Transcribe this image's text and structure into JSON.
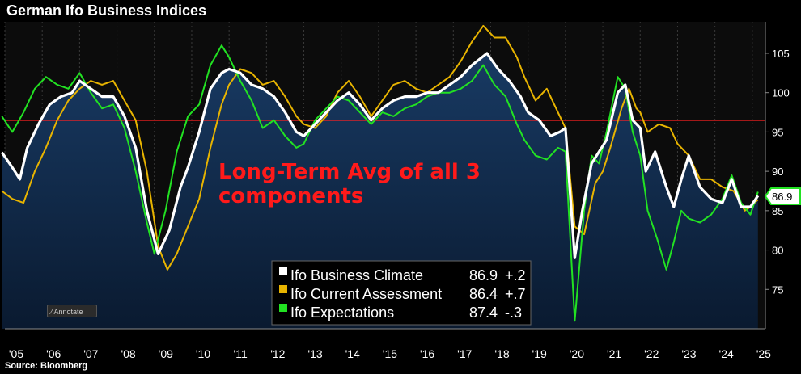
{
  "title": "German Ifo Business Indices",
  "source": "Source: Bloomberg",
  "annotate_label": "Annotate",
  "chart_data": {
    "type": "line",
    "title": "German Ifo Business Indices",
    "ylim": [
      70,
      109
    ],
    "yticks": [
      75,
      80,
      85,
      90,
      95,
      100,
      105
    ],
    "xlim": [
      2005.0,
      2025.35
    ],
    "xticks": [
      {
        "label": "'05",
        "x": 2005.0
      },
      {
        "label": "'06",
        "x": 2006.0
      },
      {
        "label": "'07",
        "x": 2007.0
      },
      {
        "label": "'08",
        "x": 2008.0
      },
      {
        "label": "'09",
        "x": 2009.0
      },
      {
        "label": "'10",
        "x": 2010.0
      },
      {
        "label": "'11",
        "x": 2011.0
      },
      {
        "label": "'12",
        "x": 2012.0
      },
      {
        "label": "'13",
        "x": 2013.0
      },
      {
        "label": "'14",
        "x": 2014.0
      },
      {
        "label": "'15",
        "x": 2015.0
      },
      {
        "label": "'16",
        "x": 2016.0
      },
      {
        "label": "'17",
        "x": 2017.0
      },
      {
        "label": "'18",
        "x": 2018.0
      },
      {
        "label": "'19",
        "x": 2019.0
      },
      {
        "label": "'20",
        "x": 2020.0
      },
      {
        "label": "'21",
        "x": 2021.0
      },
      {
        "label": "'22",
        "x": 2022.0
      },
      {
        "label": "'23",
        "x": 2023.0
      },
      {
        "label": "'24",
        "x": 2024.0
      },
      {
        "label": "'25",
        "x": 2025.0
      }
    ],
    "reference_line": {
      "value": 96.5,
      "color": "#ff2020"
    },
    "annotation": {
      "line1": "Long-Term Avg of all 3",
      "line2": "components"
    },
    "last_value_label": "86.9",
    "series": [
      {
        "name": "Ifo Business Climate",
        "value": "86.9",
        "change": "+.2",
        "color": "#ffffff",
        "points": [
          [
            2004.92,
            92.4
          ],
          [
            2005.2,
            90.5
          ],
          [
            2005.4,
            89.0
          ],
          [
            2005.6,
            93.0
          ],
          [
            2005.9,
            96.0
          ],
          [
            2006.2,
            98.5
          ],
          [
            2006.5,
            99.5
          ],
          [
            2006.8,
            100.0
          ],
          [
            2007.0,
            101.5
          ],
          [
            2007.3,
            100.5
          ],
          [
            2007.6,
            99.5
          ],
          [
            2007.9,
            99.5
          ],
          [
            2008.2,
            97.0
          ],
          [
            2008.5,
            93.0
          ],
          [
            2008.8,
            85.0
          ],
          [
            2009.1,
            79.5
          ],
          [
            2009.4,
            82.5
          ],
          [
            2009.7,
            88.0
          ],
          [
            2009.9,
            90.5
          ],
          [
            2010.2,
            95.0
          ],
          [
            2010.5,
            100.5
          ],
          [
            2010.8,
            102.5
          ],
          [
            2011.0,
            103.0
          ],
          [
            2011.3,
            102.5
          ],
          [
            2011.6,
            101.0
          ],
          [
            2011.9,
            100.5
          ],
          [
            2012.2,
            99.5
          ],
          [
            2012.5,
            97.5
          ],
          [
            2012.8,
            95.0
          ],
          [
            2013.0,
            94.5
          ],
          [
            2013.3,
            96.0
          ],
          [
            2013.6,
            97.5
          ],
          [
            2013.9,
            99.0
          ],
          [
            2014.2,
            100.0
          ],
          [
            2014.5,
            98.5
          ],
          [
            2014.8,
            96.5
          ],
          [
            2015.1,
            98.0
          ],
          [
            2015.4,
            99.0
          ],
          [
            2015.7,
            99.5
          ],
          [
            2016.0,
            99.5
          ],
          [
            2016.3,
            100.0
          ],
          [
            2016.6,
            100.0
          ],
          [
            2016.9,
            101.0
          ],
          [
            2017.2,
            102.0
          ],
          [
            2017.5,
            103.5
          ],
          [
            2017.9,
            105.0
          ],
          [
            2018.2,
            103.0
          ],
          [
            2018.5,
            101.5
          ],
          [
            2018.8,
            99.5
          ],
          [
            2019.0,
            97.5
          ],
          [
            2019.3,
            96.5
          ],
          [
            2019.6,
            94.5
          ],
          [
            2019.85,
            95.0
          ],
          [
            2020.0,
            95.5
          ],
          [
            2020.25,
            79.0
          ],
          [
            2020.45,
            85.0
          ],
          [
            2020.7,
            91.0
          ],
          [
            2020.9,
            92.5
          ],
          [
            2021.1,
            94.0
          ],
          [
            2021.4,
            100.0
          ],
          [
            2021.6,
            101.0
          ],
          [
            2021.8,
            96.5
          ],
          [
            2022.0,
            95.5
          ],
          [
            2022.15,
            90.0
          ],
          [
            2022.4,
            92.5
          ],
          [
            2022.7,
            88.0
          ],
          [
            2022.9,
            85.5
          ],
          [
            2023.1,
            89.0
          ],
          [
            2023.3,
            92.0
          ],
          [
            2023.6,
            88.0
          ],
          [
            2023.9,
            86.5
          ],
          [
            2024.2,
            86.0
          ],
          [
            2024.45,
            89.0
          ],
          [
            2024.7,
            85.5
          ],
          [
            2024.95,
            85.5
          ],
          [
            2025.15,
            86.9
          ]
        ]
      },
      {
        "name": "Ifo Current Assessment",
        "value": "86.4",
        "change": "+.7",
        "color": "#e8b400",
        "points": [
          [
            2004.92,
            87.5
          ],
          [
            2005.2,
            86.5
          ],
          [
            2005.5,
            86.0
          ],
          [
            2005.8,
            90.0
          ],
          [
            2006.1,
            93.0
          ],
          [
            2006.4,
            96.5
          ],
          [
            2006.7,
            99.0
          ],
          [
            2007.0,
            100.5
          ],
          [
            2007.3,
            101.5
          ],
          [
            2007.6,
            101.0
          ],
          [
            2007.9,
            101.5
          ],
          [
            2008.2,
            99.0
          ],
          [
            2008.5,
            96.5
          ],
          [
            2008.8,
            90.0
          ],
          [
            2009.1,
            80.5
          ],
          [
            2009.35,
            77.5
          ],
          [
            2009.6,
            79.5
          ],
          [
            2009.9,
            83.0
          ],
          [
            2010.2,
            86.5
          ],
          [
            2010.5,
            93.0
          ],
          [
            2010.8,
            98.5
          ],
          [
            2011.0,
            101.0
          ],
          [
            2011.3,
            103.0
          ],
          [
            2011.6,
            102.5
          ],
          [
            2011.9,
            101.0
          ],
          [
            2012.2,
            101.5
          ],
          [
            2012.5,
            99.5
          ],
          [
            2012.8,
            97.0
          ],
          [
            2013.0,
            96.0
          ],
          [
            2013.3,
            95.5
          ],
          [
            2013.6,
            97.0
          ],
          [
            2013.9,
            100.0
          ],
          [
            2014.2,
            101.5
          ],
          [
            2014.5,
            99.5
          ],
          [
            2014.8,
            97.0
          ],
          [
            2015.1,
            99.0
          ],
          [
            2015.4,
            101.0
          ],
          [
            2015.7,
            101.5
          ],
          [
            2016.0,
            100.5
          ],
          [
            2016.3,
            100.0
          ],
          [
            2016.6,
            101.0
          ],
          [
            2016.9,
            102.0
          ],
          [
            2017.2,
            104.0
          ],
          [
            2017.5,
            106.5
          ],
          [
            2017.8,
            108.5
          ],
          [
            2018.1,
            107.0
          ],
          [
            2018.4,
            107.0
          ],
          [
            2018.7,
            104.5
          ],
          [
            2018.9,
            102.0
          ],
          [
            2019.2,
            99.0
          ],
          [
            2019.5,
            100.5
          ],
          [
            2019.8,
            97.5
          ],
          [
            2020.0,
            95.5
          ],
          [
            2020.25,
            83.0
          ],
          [
            2020.5,
            82.0
          ],
          [
            2020.8,
            88.5
          ],
          [
            2021.0,
            90.0
          ],
          [
            2021.2,
            93.0
          ],
          [
            2021.5,
            98.0
          ],
          [
            2021.7,
            100.5
          ],
          [
            2021.9,
            98.0
          ],
          [
            2022.0,
            97.5
          ],
          [
            2022.2,
            95.0
          ],
          [
            2022.5,
            96.0
          ],
          [
            2022.8,
            95.5
          ],
          [
            2023.0,
            93.5
          ],
          [
            2023.3,
            92.0
          ],
          [
            2023.6,
            89.0
          ],
          [
            2023.9,
            89.0
          ],
          [
            2024.2,
            88.0
          ],
          [
            2024.5,
            87.5
          ],
          [
            2024.8,
            85.0
          ],
          [
            2024.95,
            85.5
          ],
          [
            2025.15,
            86.4
          ]
        ]
      },
      {
        "name": "Ifo Expectations",
        "value": "87.4",
        "change": "-.3",
        "color": "#22e222",
        "points": [
          [
            2004.92,
            97.0
          ],
          [
            2005.2,
            95.0
          ],
          [
            2005.5,
            97.5
          ],
          [
            2005.8,
            100.5
          ],
          [
            2006.1,
            102.0
          ],
          [
            2006.4,
            101.0
          ],
          [
            2006.7,
            100.5
          ],
          [
            2007.0,
            102.5
          ],
          [
            2007.3,
            100.0
          ],
          [
            2007.6,
            98.0
          ],
          [
            2007.9,
            98.5
          ],
          [
            2008.2,
            95.5
          ],
          [
            2008.5,
            90.0
          ],
          [
            2008.8,
            83.5
          ],
          [
            2009.0,
            79.5
          ],
          [
            2009.3,
            85.0
          ],
          [
            2009.6,
            92.5
          ],
          [
            2009.9,
            97.0
          ],
          [
            2010.2,
            98.5
          ],
          [
            2010.5,
            103.5
          ],
          [
            2010.8,
            106.0
          ],
          [
            2011.0,
            104.5
          ],
          [
            2011.3,
            101.5
          ],
          [
            2011.6,
            99.0
          ],
          [
            2011.9,
            95.5
          ],
          [
            2012.2,
            96.5
          ],
          [
            2012.5,
            94.5
          ],
          [
            2012.8,
            93.0
          ],
          [
            2013.0,
            93.5
          ],
          [
            2013.3,
            96.5
          ],
          [
            2013.6,
            98.0
          ],
          [
            2013.9,
            99.5
          ],
          [
            2014.2,
            99.0
          ],
          [
            2014.5,
            97.5
          ],
          [
            2014.8,
            96.0
          ],
          [
            2015.1,
            97.5
          ],
          [
            2015.4,
            97.0
          ],
          [
            2015.7,
            98.0
          ],
          [
            2016.0,
            98.5
          ],
          [
            2016.3,
            99.5
          ],
          [
            2016.6,
            100.0
          ],
          [
            2016.9,
            100.0
          ],
          [
            2017.2,
            100.5
          ],
          [
            2017.5,
            101.5
          ],
          [
            2017.8,
            103.5
          ],
          [
            2018.1,
            101.0
          ],
          [
            2018.4,
            99.5
          ],
          [
            2018.7,
            96.0
          ],
          [
            2018.9,
            94.0
          ],
          [
            2019.2,
            92.0
          ],
          [
            2019.5,
            91.5
          ],
          [
            2019.8,
            93.0
          ],
          [
            2020.0,
            92.5
          ],
          [
            2020.25,
            71.0
          ],
          [
            2020.5,
            85.0
          ],
          [
            2020.7,
            92.0
          ],
          [
            2020.9,
            91.0
          ],
          [
            2021.1,
            95.0
          ],
          [
            2021.4,
            102.0
          ],
          [
            2021.6,
            100.5
          ],
          [
            2021.8,
            95.0
          ],
          [
            2022.0,
            92.0
          ],
          [
            2022.2,
            85.0
          ],
          [
            2022.45,
            81.5
          ],
          [
            2022.7,
            77.5
          ],
          [
            2022.9,
            81.0
          ],
          [
            2023.1,
            85.0
          ],
          [
            2023.3,
            84.0
          ],
          [
            2023.6,
            83.5
          ],
          [
            2023.9,
            84.5
          ],
          [
            2024.2,
            86.5
          ],
          [
            2024.45,
            89.5
          ],
          [
            2024.7,
            86.0
          ],
          [
            2024.95,
            84.5
          ],
          [
            2025.15,
            87.4
          ]
        ]
      }
    ]
  }
}
